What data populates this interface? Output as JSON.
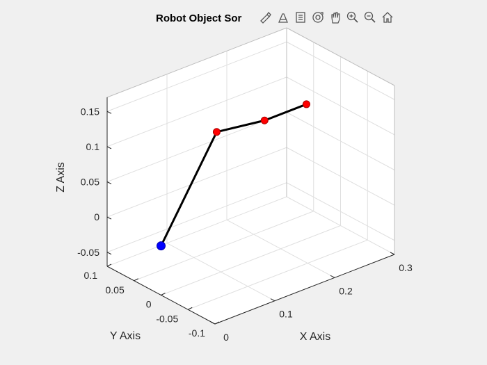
{
  "figure": {
    "title": "Robot Object Sor",
    "toolbar": [
      {
        "name": "brush-icon"
      },
      {
        "name": "data-tip-icon"
      },
      {
        "name": "legend-icon"
      },
      {
        "name": "rotate-icon"
      },
      {
        "name": "pan-hand-icon"
      },
      {
        "name": "zoom-in-icon"
      },
      {
        "name": "zoom-out-icon"
      },
      {
        "name": "home-icon"
      }
    ]
  },
  "chart_data": {
    "type": "line3d",
    "title": "Robot Object Sor",
    "xlabel": "X Axis",
    "ylabel": "Y Axis",
    "zlabel": "Z Axis",
    "xlim": [
      0,
      0.3
    ],
    "ylim": [
      -0.1,
      0.1
    ],
    "zlim": [
      -0.07,
      0.17
    ],
    "xticks": [
      {
        "value": 0,
        "label": "0"
      },
      {
        "value": 0.1,
        "label": "0.1"
      },
      {
        "value": 0.2,
        "label": "0.2"
      },
      {
        "value": 0.3,
        "label": "0.3"
      }
    ],
    "yticks": [
      {
        "value": -0.1,
        "label": "-0.1"
      },
      {
        "value": -0.05,
        "label": "-0.05"
      },
      {
        "value": 0,
        "label": "0"
      },
      {
        "value": 0.05,
        "label": "0.05"
      },
      {
        "value": 0.1,
        "label": "0.1"
      }
    ],
    "zticks": [
      {
        "value": -0.05,
        "label": "-0.05"
      },
      {
        "value": 0,
        "label": "0"
      },
      {
        "value": 0.05,
        "label": "0.05"
      },
      {
        "value": 0.1,
        "label": "0.1"
      },
      {
        "value": 0.15,
        "label": "0.15"
      }
    ],
    "grid": true,
    "view": "3d-default",
    "series": [
      {
        "points": [
          {
            "x": 0,
            "y": 0,
            "z": 0,
            "marker_color": "#0000ff"
          },
          {
            "x": 0.12,
            "y": 0.03,
            "z": 0.11,
            "marker_color": "#ff0000"
          },
          {
            "x": 0.2,
            "y": 0.03,
            "z": 0.1,
            "marker_color": "#ff0000"
          },
          {
            "x": 0.27,
            "y": 0.03,
            "z": 0.1,
            "marker_color": "#ff0000"
          }
        ],
        "line_color": "#000000"
      }
    ]
  }
}
